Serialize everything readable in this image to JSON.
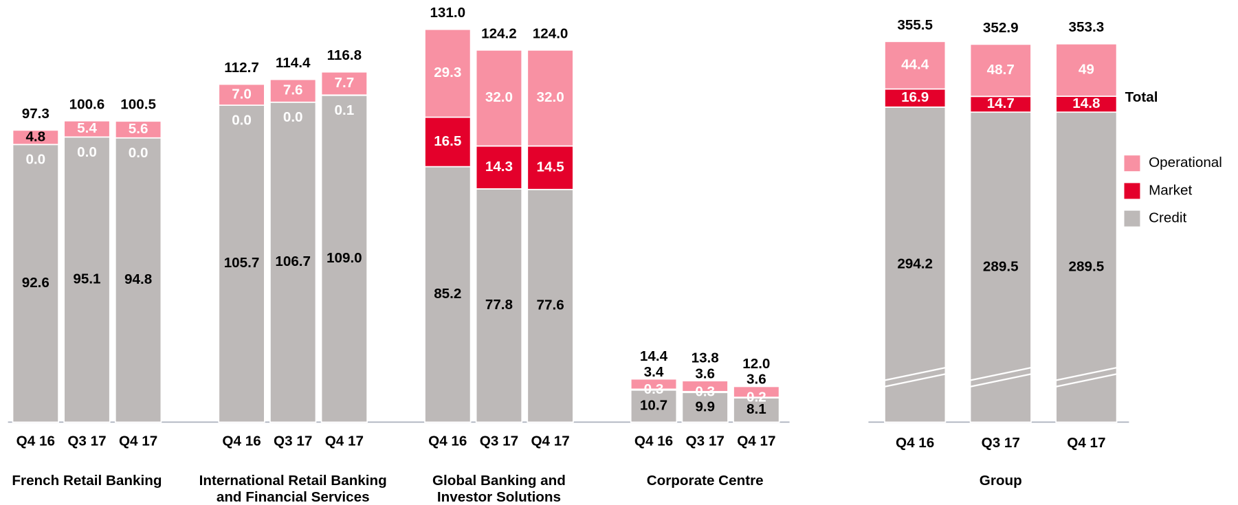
{
  "chart_data": [
    {
      "type": "bar",
      "stacked": true,
      "groups": [
        [
          "French Retail Banking"
        ],
        [
          "International Retail Banking",
          "and Financial Services"
        ],
        [
          "Global Banking and",
          "Investor Solutions"
        ],
        [
          "Corporate Centre"
        ]
      ],
      "categories": [
        [
          "Q4 16",
          "Q3 17",
          "Q4 17"
        ],
        [
          "Q4 16",
          "Q3 17",
          "Q4 17"
        ],
        [
          "Q4 16",
          "Q3 17",
          "Q4 17"
        ],
        [
          "Q4 16",
          "Q3 17",
          "Q4 17"
        ]
      ],
      "series": [
        {
          "name": "Credit",
          "color": "#bdb9b8",
          "values": [
            [
              92.6,
              95.1,
              94.8
            ],
            [
              105.7,
              106.7,
              109.0
            ],
            [
              85.2,
              77.8,
              77.6
            ],
            [
              10.7,
              9.9,
              8.1
            ]
          ],
          "value_labels": [
            [
              "92.6",
              "95.1",
              "94.8"
            ],
            [
              "105.7",
              "106.7",
              "109.0"
            ],
            [
              "85.2",
              "77.8",
              "77.6"
            ],
            [
              "10.7",
              "9.9",
              "8.1"
            ]
          ]
        },
        {
          "name": "Market",
          "color": "#e4002b",
          "values": [
            [
              0.0,
              0.0,
              0.0
            ],
            [
              0.0,
              0.0,
              0.1
            ],
            [
              16.5,
              14.3,
              14.5
            ],
            [
              0.3,
              0.3,
              0.2
            ]
          ],
          "value_labels": [
            [
              "0.0",
              "0.0",
              "0.0"
            ],
            [
              "0.0",
              "0.0",
              "0.1"
            ],
            [
              "16.5",
              "14.3",
              "14.5"
            ],
            [
              "0.3",
              "0.3",
              "0.2"
            ]
          ]
        },
        {
          "name": "Operational",
          "color": "#f891a3",
          "values": [
            [
              4.8,
              5.4,
              5.6
            ],
            [
              7.0,
              7.6,
              7.7
            ],
            [
              29.3,
              32.0,
              32.0
            ],
            [
              3.4,
              3.6,
              3.6
            ]
          ],
          "value_labels": [
            [
              "4.8",
              "5.4",
              "5.6"
            ],
            [
              "7.0",
              "7.6",
              "7.7"
            ],
            [
              "29.3",
              "32.0",
              "32.0"
            ],
            [
              "3.4",
              "3.6",
              "3.6"
            ]
          ]
        }
      ],
      "totals": [
        [
          97.3,
          100.6,
          100.5
        ],
        [
          112.7,
          114.4,
          116.8
        ],
        [
          131.0,
          124.2,
          124.0
        ],
        [
          14.4,
          13.8,
          12.0
        ]
      ],
      "total_labels": [
        [
          "97.3",
          "100.6",
          "100.5"
        ],
        [
          "112.7",
          "114.4",
          "116.8"
        ],
        [
          "131.0",
          "124.2",
          "124.0"
        ],
        [
          "14.4",
          "13.8",
          "12.0"
        ]
      ],
      "ylim": [
        0,
        140
      ]
    },
    {
      "type": "bar",
      "stacked": true,
      "broken_axis": true,
      "groups": [
        [
          "Group"
        ]
      ],
      "categories": [
        [
          "Q4 16",
          "Q3 17",
          "Q4 17"
        ]
      ],
      "series": [
        {
          "name": "Credit",
          "color": "#bdb9b8",
          "values": [
            [
              294.2,
              289.5,
              289.5
            ]
          ]
        },
        {
          "name": "Market",
          "color": "#e4002b",
          "values": [
            [
              16.9,
              14.7,
              14.8
            ]
          ]
        },
        {
          "name": "Operational",
          "color": "#f891a3",
          "values": [
            [
              44.4,
              48.7,
              49.0
            ]
          ]
        }
      ],
      "totals": [
        [
          355.5,
          352.9,
          353.3
        ]
      ],
      "annotation": "Total",
      "ylim": [
        0,
        392
      ],
      "legend": "right"
    }
  ]
}
